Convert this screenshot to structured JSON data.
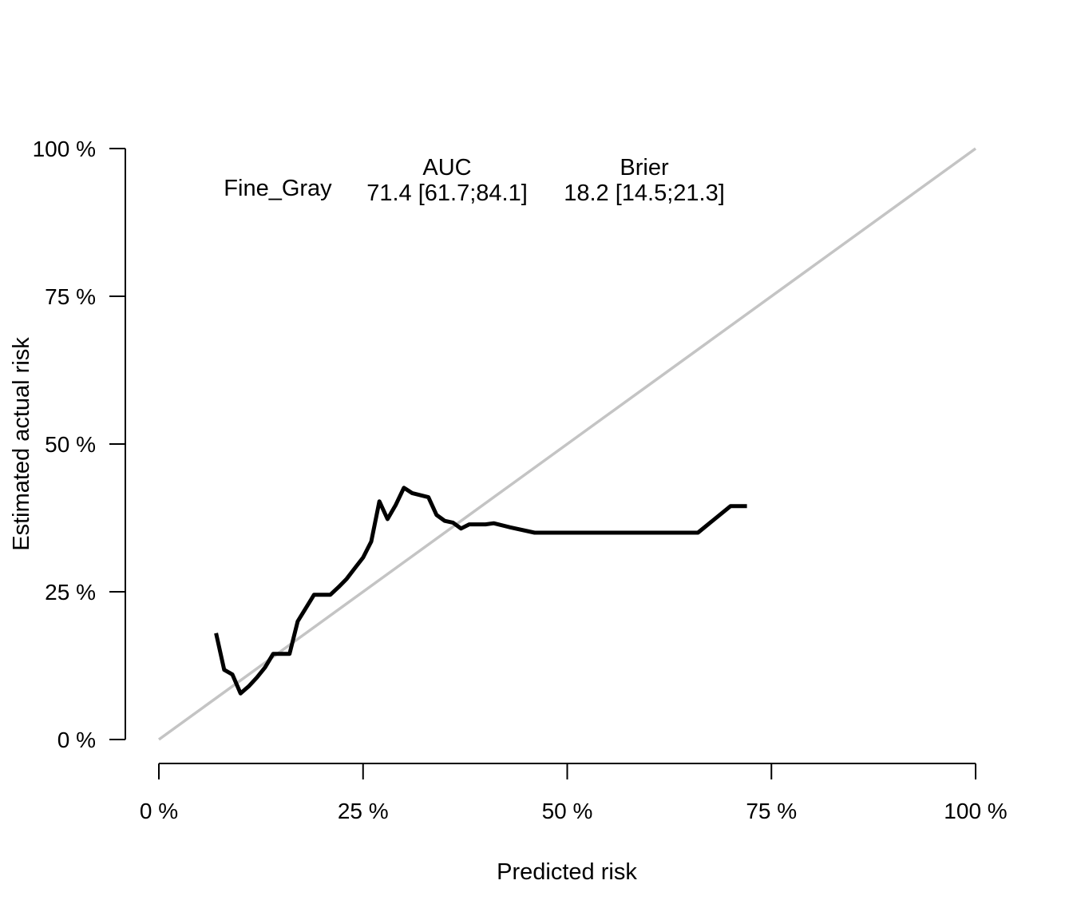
{
  "chart_data": {
    "type": "line",
    "xlabel": "Predicted risk",
    "ylabel": "Estimated actual risk",
    "xlim": [
      0,
      100
    ],
    "ylim": [
      0,
      100
    ],
    "x_ticks": [
      "0 %",
      "25 %",
      "50 %",
      "75 %",
      "100 %"
    ],
    "y_ticks": [
      "0 %",
      "25 %",
      "50 %",
      "75 %",
      "100 %"
    ],
    "tick_values": [
      0,
      25,
      50,
      75,
      100
    ],
    "grid": false,
    "reference_line": {
      "x": [
        0,
        100
      ],
      "y": [
        0,
        100
      ],
      "color": "#c4c4c4"
    },
    "series": [
      {
        "name": "Fine_Gray",
        "color": "#000000",
        "x": [
          7.0,
          8.0,
          9.0,
          10.0,
          11.0,
          12.0,
          13.0,
          14.0,
          16.0,
          17.0,
          19.0,
          21.0,
          22.0,
          23.0,
          24.0,
          25.0,
          26.0,
          27.0,
          28.0,
          29.0,
          30.0,
          31.0,
          33.0,
          34.0,
          35.0,
          36.0,
          37.0,
          38.0,
          40.0,
          41.0,
          43.0,
          46.0,
          50.0,
          55.0,
          60.0,
          66.0,
          70.0,
          72.0
        ],
        "y": [
          18.0,
          11.8,
          11.0,
          7.8,
          9.0,
          10.5,
          12.2,
          14.5,
          14.5,
          20.0,
          24.5,
          24.5,
          25.8,
          27.2,
          29.0,
          30.8,
          33.5,
          40.3,
          37.3,
          39.7,
          42.6,
          41.7,
          41.0,
          38.0,
          37.0,
          36.7,
          35.7,
          36.4,
          36.4,
          36.6,
          35.9,
          35.0,
          35.0,
          35.0,
          35.0,
          35.0,
          39.5,
          39.5
        ]
      }
    ],
    "legend": {
      "placement": "top",
      "auc_header": "AUC",
      "brier_header": "Brier",
      "rows": [
        {
          "model": "Fine_Gray",
          "auc": "71.4 [61.7;84.1]",
          "brier": "18.2 [14.5;21.3]"
        }
      ]
    }
  }
}
